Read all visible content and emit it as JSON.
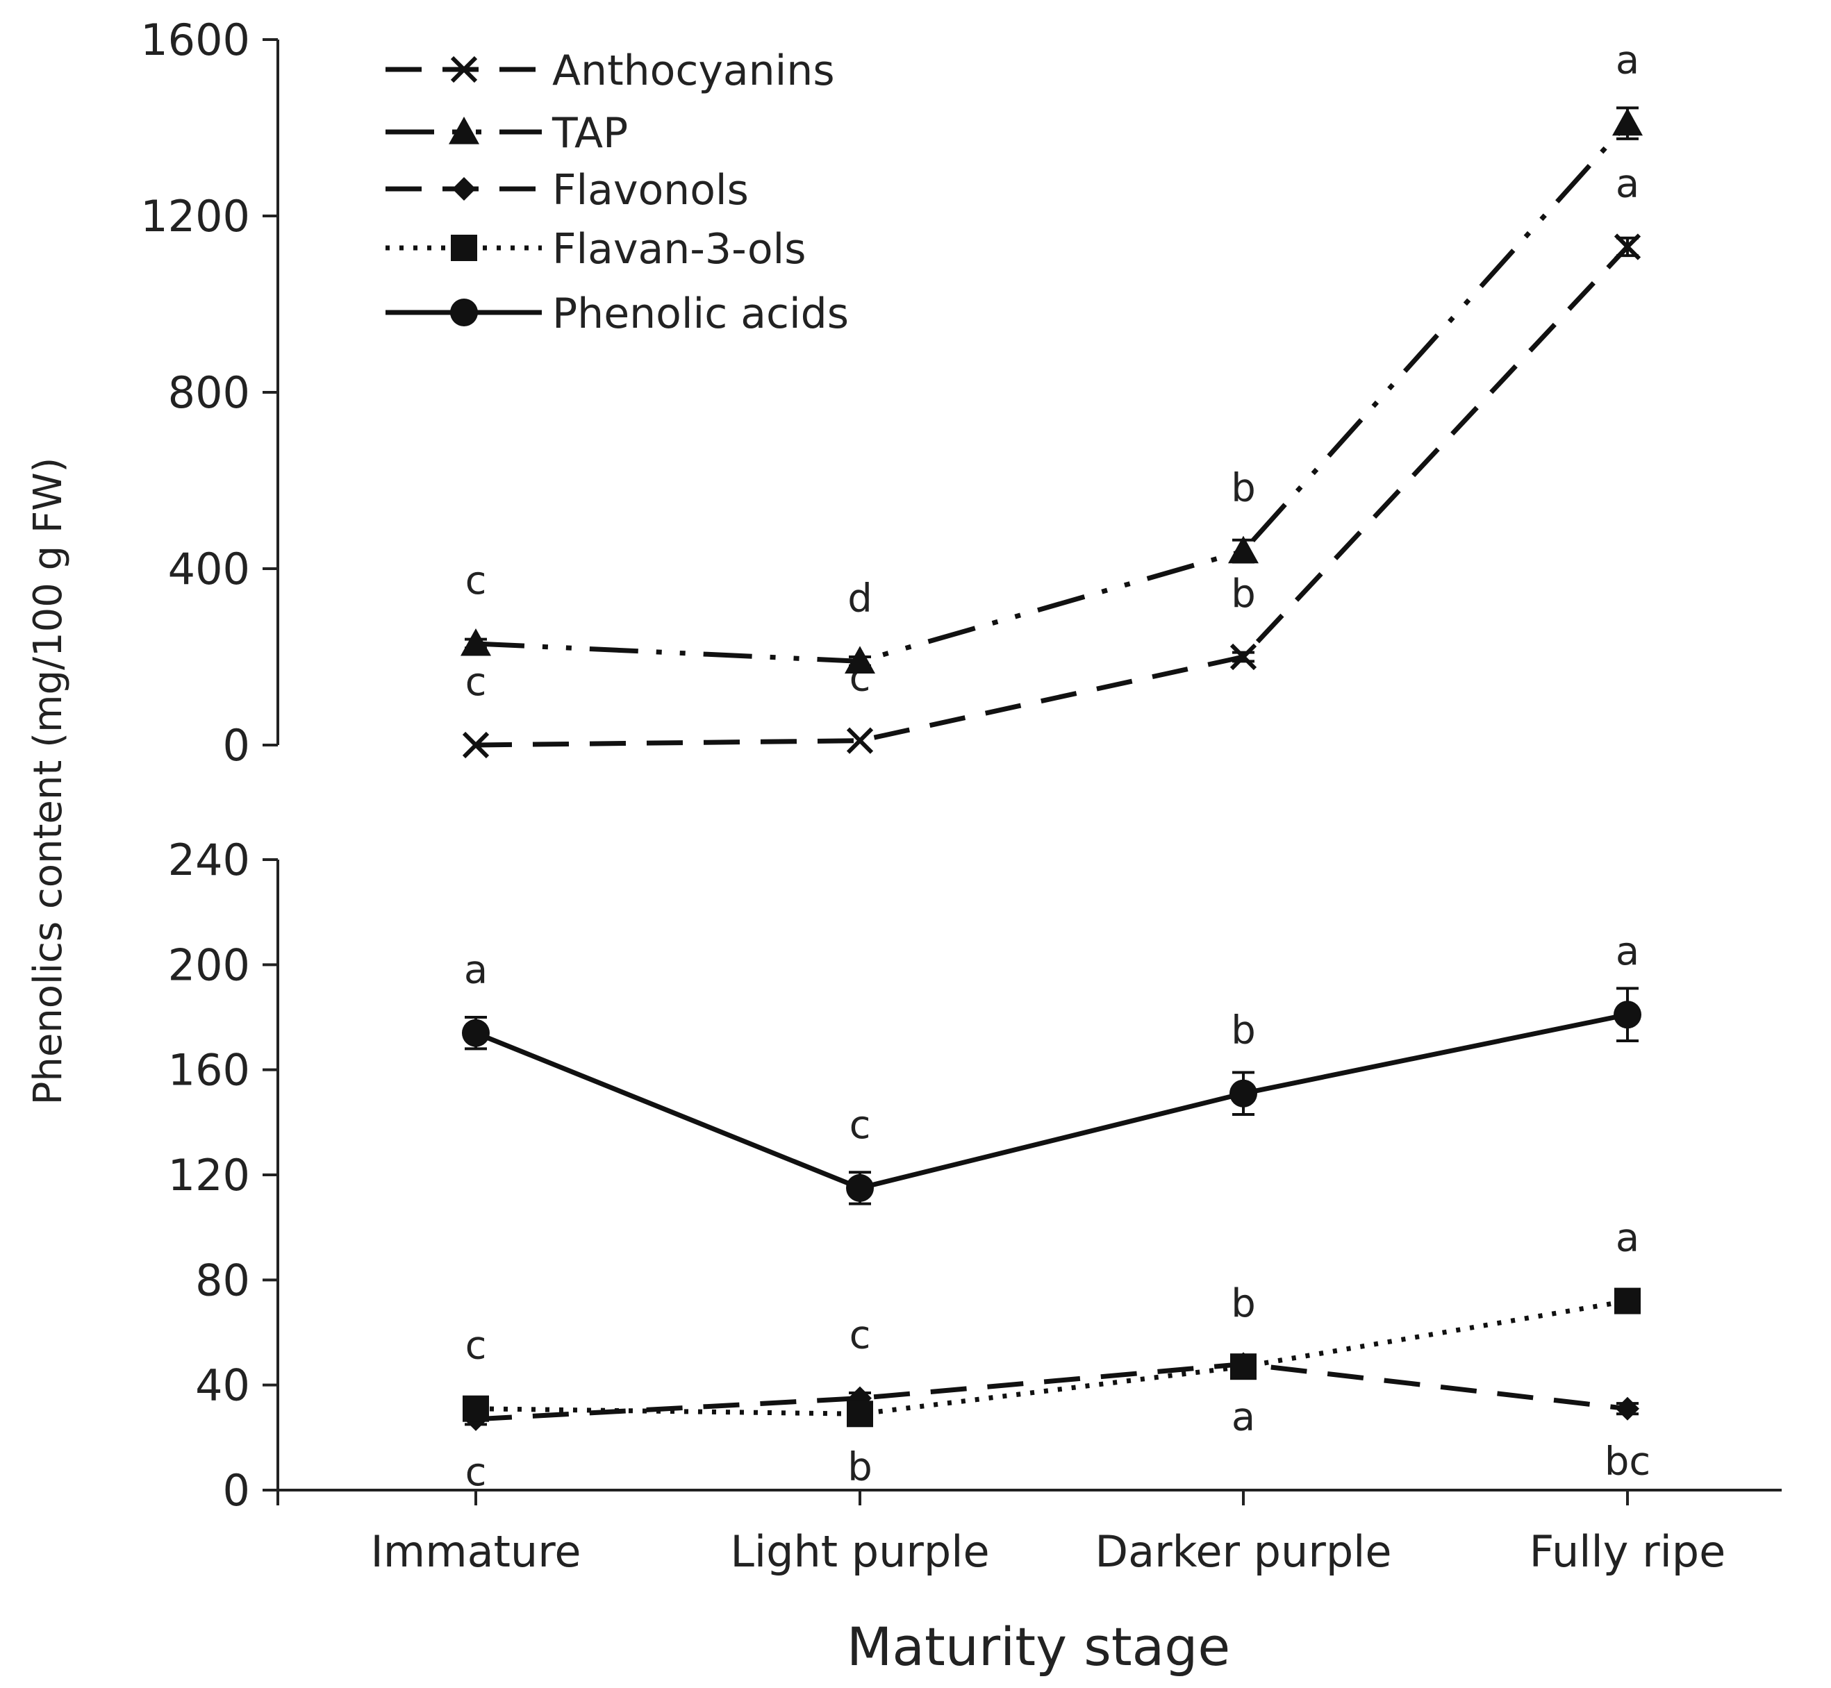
{
  "chart_data": {
    "type": "line",
    "xlabel": "Maturity stage",
    "ylabel": "Phenolics content (mg/100 g FW)",
    "categories": [
      "Immature",
      "Light purple",
      "Darker purple",
      "Fully ripe"
    ],
    "panels": [
      {
        "name": "upper",
        "ylim": [
          0,
          1600
        ],
        "yticks": [
          "0",
          "400",
          "800",
          "1200",
          "1600"
        ],
        "series": [
          {
            "name": "Anthocyanins",
            "marker": "x-icon",
            "line": "dashed",
            "values": [
              0,
              10,
              200,
              1130
            ],
            "errors": [
              0,
              0,
              10,
              20
            ],
            "sig": [
              "c",
              "c",
              "b",
              "a"
            ],
            "sig_pos": [
              "above",
              "above",
              "above",
              "above"
            ]
          },
          {
            "name": "TAP",
            "marker": "triangle-icon",
            "line": "dash-dot-dot",
            "values": [
              230,
              190,
              440,
              1410
            ],
            "errors": [
              10,
              10,
              25,
              35
            ],
            "sig": [
              "c",
              "d",
              "b",
              "a"
            ],
            "sig_pos": [
              "above",
              "above",
              "above",
              "above"
            ]
          }
        ]
      },
      {
        "name": "lower",
        "ylim": [
          0,
          240
        ],
        "yticks": [
          "0",
          "40",
          "80",
          "120",
          "160",
          "200",
          "240"
        ],
        "series": [
          {
            "name": "Flavonols",
            "marker": "diamond-icon",
            "line": "dashed",
            "values": [
              27,
              35,
              48,
              31
            ],
            "errors": [
              2,
              2,
              2,
              2
            ],
            "sig": [
              "c",
              "c",
              "a",
              "bc"
            ],
            "sig_pos": [
              "below",
              "above",
              "below",
              "below"
            ]
          },
          {
            "name": "Flavan-3-ols",
            "marker": "square-icon",
            "line": "dotted",
            "values": [
              31,
              29,
              47,
              72
            ],
            "errors": [
              2,
              2,
              2,
              2
            ],
            "sig": [
              "c",
              "b",
              "b",
              "a"
            ],
            "sig_pos": [
              "above",
              "below",
              "above",
              "above"
            ]
          },
          {
            "name": "Phenolic acids",
            "marker": "circle-icon",
            "line": "solid",
            "values": [
              174,
              115,
              151,
              181
            ],
            "errors": [
              6,
              6,
              8,
              10
            ],
            "sig": [
              "a",
              "c",
              "b",
              "a"
            ],
            "sig_pos": [
              "above",
              "above",
              "above",
              "above"
            ]
          }
        ]
      }
    ],
    "legend": {
      "position": "top-left",
      "entries": [
        "Anthocyanins",
        "TAP",
        "Flavonols",
        "Flavan-3-ols",
        "Phenolic acids"
      ]
    }
  }
}
